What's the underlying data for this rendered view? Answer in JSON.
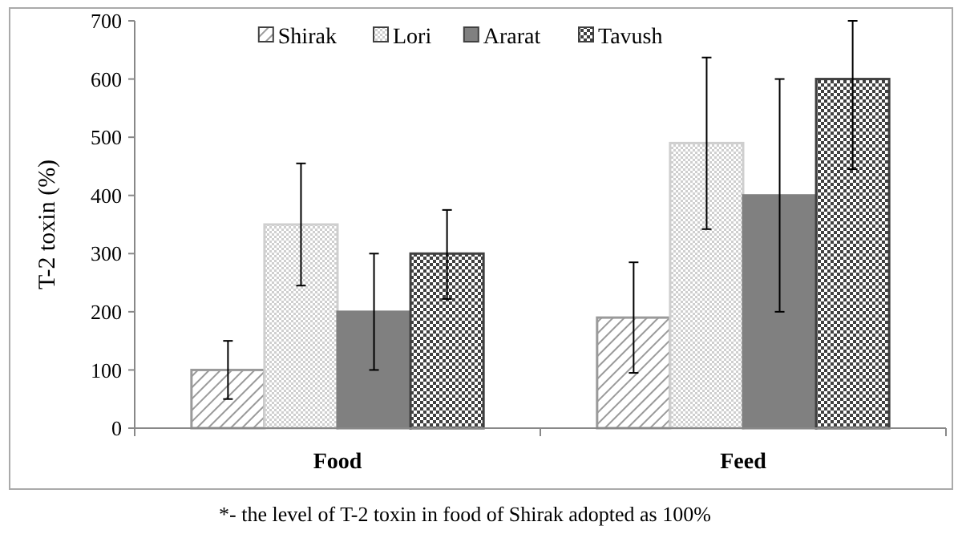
{
  "chart_data": {
    "type": "bar",
    "ylabel": "T-2 toxin (%)",
    "categories": [
      "Food",
      "Feed"
    ],
    "series": [
      {
        "name": "Shirak",
        "color": "#9a9a9a",
        "values": [
          100,
          190
        ],
        "errors": [
          [
            50,
            150
          ],
          [
            95,
            285
          ]
        ]
      },
      {
        "name": "Lori",
        "color": "#cfcfcf",
        "values": [
          350,
          490
        ],
        "errors": [
          [
            245,
            455
          ],
          [
            342,
            637
          ]
        ]
      },
      {
        "name": "Ararat",
        "color": "#808080",
        "values": [
          200,
          400
        ],
        "errors": [
          [
            100,
            300
          ],
          [
            200,
            600
          ]
        ]
      },
      {
        "name": "Tavush",
        "color": "#404040",
        "values": [
          300,
          600
        ],
        "errors": [
          [
            222,
            375
          ],
          [
            445,
            700
          ]
        ]
      }
    ],
    "ylim": [
      0,
      700
    ],
    "yticks": [
      0,
      100,
      200,
      300,
      400,
      500,
      600,
      700
    ],
    "grid": false,
    "legend": "top",
    "annotations": [
      "*- the level of T-2 toxin in food of Shirak adopted as 100%"
    ]
  }
}
